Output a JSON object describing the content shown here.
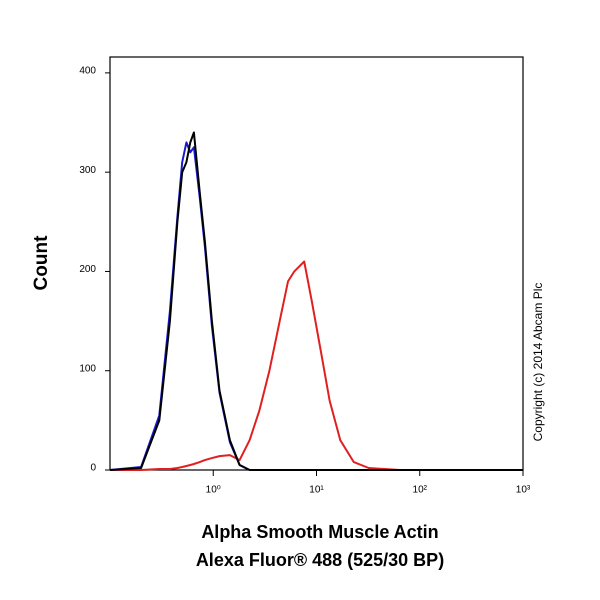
{
  "chart_data": {
    "type": "line",
    "ylabel": "Count",
    "xlabel": [
      "Alpha Smooth Muscle Actin",
      "Alexa Fluor® 488 (525/30 BP)"
    ],
    "annotation": "Copyright (c) 2014 Abcam Plc",
    "xscale": "log",
    "x": [
      0.1,
      0.2,
      0.3,
      0.38,
      0.45,
      0.5,
      0.55,
      0.6,
      0.65,
      0.74,
      0.83,
      0.97,
      1.15,
      1.45,
      1.8,
      2.25,
      2.8,
      3.5,
      4.4,
      5.3,
      6.1,
      7.6,
      9,
      11,
      13.4,
      17,
      23,
      32,
      64,
      1000
    ],
    "series": [
      {
        "color": "#e02020",
        "values": [
          0,
          0,
          1,
          1,
          2,
          3,
          4,
          5,
          6,
          8,
          10,
          12,
          14,
          15,
          10,
          30,
          60,
          100,
          150,
          190,
          200,
          210,
          170,
          120,
          70,
          30,
          8,
          2,
          0,
          0
        ]
      },
      {
        "color": "#1a1ad0",
        "values": [
          0,
          3,
          55,
          160,
          255,
          310,
          330,
          320,
          325,
          275,
          225,
          145,
          78,
          28,
          5,
          0,
          0,
          0,
          0,
          0,
          0,
          0,
          0,
          0,
          0,
          0,
          0,
          0,
          0,
          0
        ]
      },
      {
        "color": "#000000",
        "values": [
          0,
          2,
          50,
          150,
          250,
          300,
          310,
          330,
          340,
          280,
          230,
          150,
          80,
          30,
          5,
          0,
          0,
          0,
          0,
          0,
          0,
          0,
          0,
          0,
          0,
          0,
          0,
          0,
          0,
          0
        ]
      }
    ],
    "xlim": [
      0.1,
      1000
    ],
    "xticks": [
      {
        "value": 1,
        "label": "10⁰"
      },
      {
        "value": 10,
        "label": "10¹"
      },
      {
        "value": 100,
        "label": "10²"
      },
      {
        "value": 1000,
        "label": "10³"
      }
    ],
    "ylim": [
      0,
      416
    ],
    "yticks": [
      0,
      100,
      200,
      300,
      400
    ]
  }
}
